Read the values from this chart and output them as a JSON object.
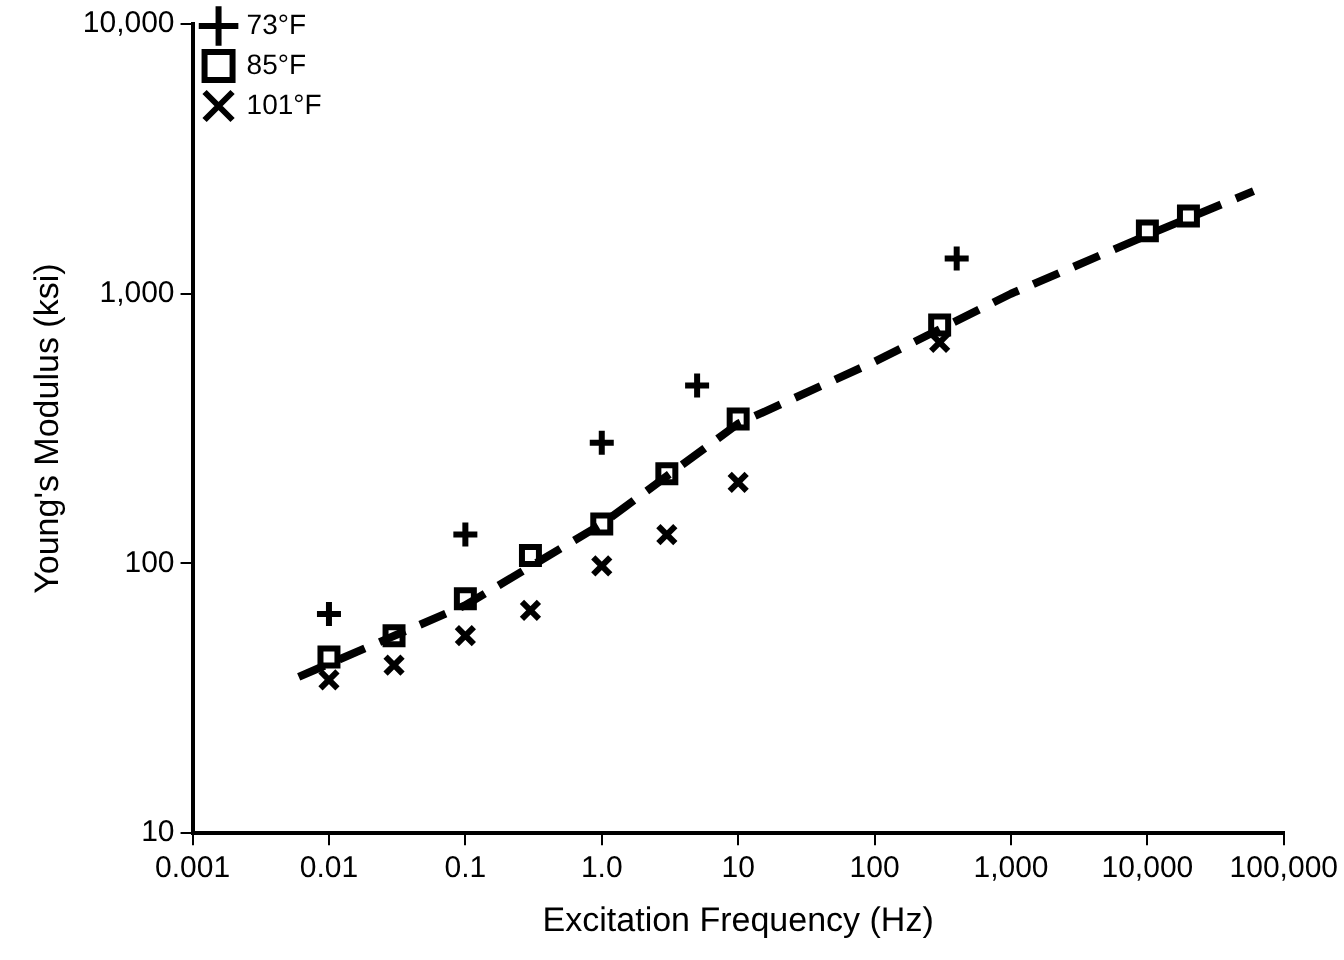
{
  "chart_data": {
    "type": "scatter",
    "xlabel": "Excitation Frequency (Hz)",
    "ylabel": "Young's Modulus (ksi)",
    "log": "xy",
    "grid": false,
    "legend": "top left",
    "xlim": [
      0.001,
      100000
    ],
    "xticks": [
      0.001,
      0.01,
      0.1,
      {
        "value": 1,
        "label": "1.0"
      },
      10,
      100,
      {
        "value": 1000,
        "label": "1,000"
      },
      {
        "value": 10000,
        "label": "10,000"
      },
      {
        "value": 100000,
        "label": "100,000"
      }
    ],
    "ylim": [
      10,
      10000
    ],
    "yticks": [
      10,
      100,
      {
        "value": 1000,
        "label": "1,000"
      },
      {
        "value": 10000,
        "label": "10,000"
      }
    ],
    "series": [
      {
        "name": "73°F",
        "color": "#000000",
        "marker": "plus",
        "x": [
          0.01,
          0.1,
          1,
          5,
          400
        ],
        "values": [
          65,
          128,
          280,
          457,
          1350
        ]
      },
      {
        "name": "85°F",
        "color": "#000000",
        "marker": "square",
        "x": [
          0.01,
          0.03,
          0.1,
          0.3,
          1,
          3,
          10,
          300,
          10000,
          20000
        ],
        "values": [
          45,
          54,
          74,
          107,
          140,
          215,
          343,
          766,
          1710,
          1940
        ]
      },
      {
        "name": "101°F",
        "color": "#000000",
        "marker": "cross",
        "x": [
          0.01,
          0.03,
          0.1,
          0.3,
          1,
          3,
          10,
          300
        ],
        "values": [
          37,
          42,
          54,
          67,
          98,
          128,
          200,
          660
        ]
      },
      {
        "type": "line",
        "color": "#000000",
        "marker": "none",
        "line_style": "dashed",
        "x": [
          0.006,
          0.1,
          1,
          10,
          100,
          1000,
          10000,
          60000
        ],
        "values": [
          38,
          70,
          140,
          330,
          560,
          1000,
          1650,
          2400
        ]
      }
    ]
  }
}
